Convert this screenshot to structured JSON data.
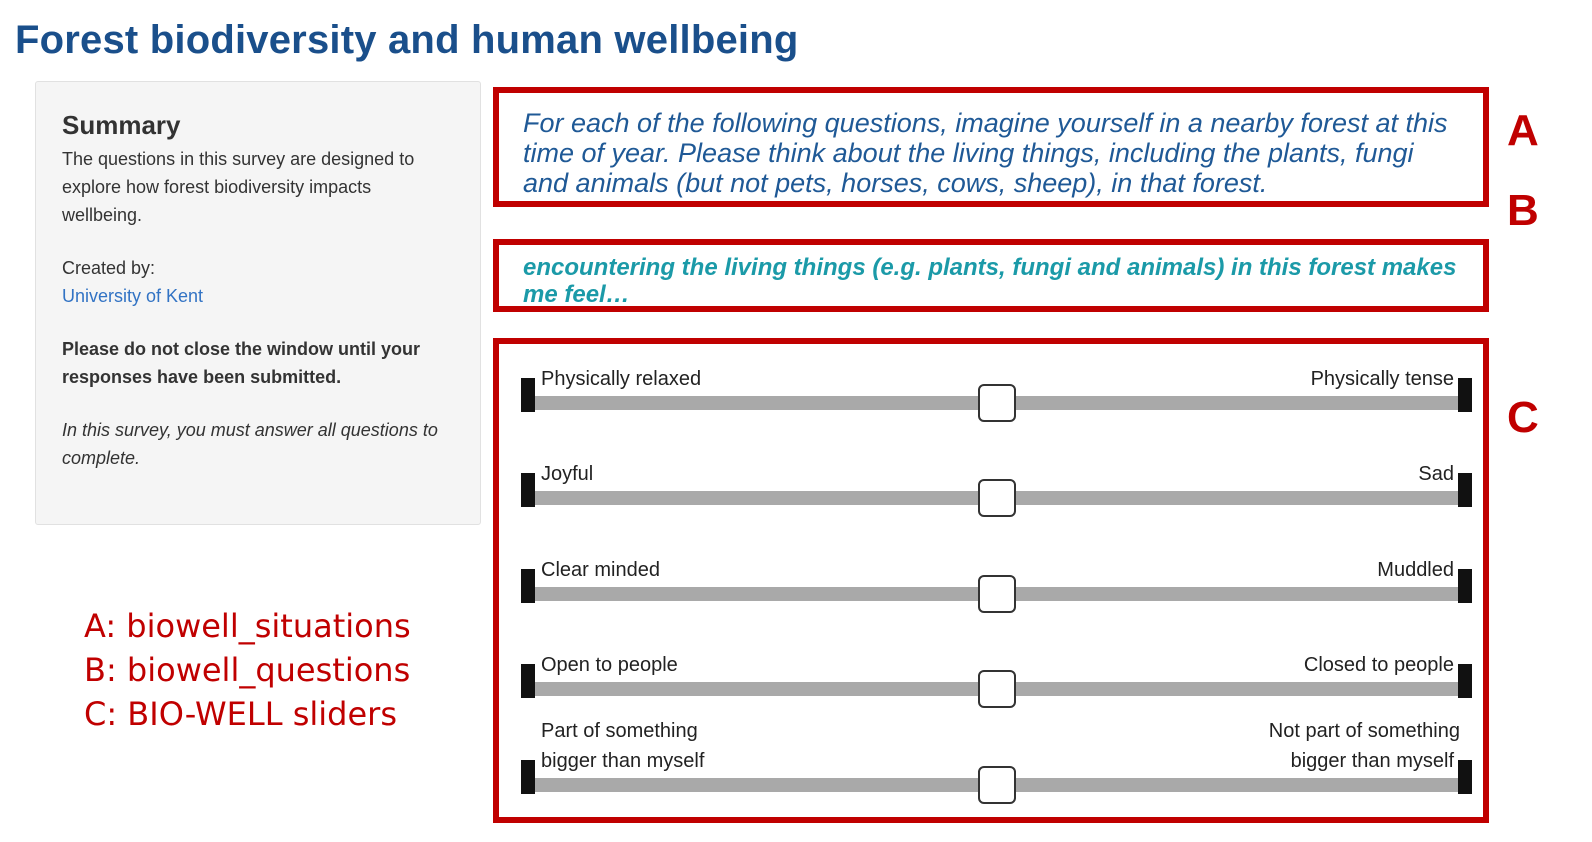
{
  "page": {
    "title": "Forest biodiversity and human wellbeing"
  },
  "summary": {
    "heading": "Summary",
    "description": "The questions in this survey are designed to explore how forest biodiversity impacts wellbeing.",
    "created_by_label": "Created by:",
    "creator": "University of Kent",
    "warning": "Please do not close the window until your responses have been submitted.",
    "note": "In this survey, you must answer all questions to complete."
  },
  "situation": {
    "text": "For each of the following questions, imagine yourself in a nearby forest at this time of year. Please think about the living things, including the plants, fungi and animals (but not pets, horses, cows, sheep), in that forest."
  },
  "question": {
    "text": "encountering the living things (e.g. plants, fungi and animals) in this forest makes me feel…"
  },
  "annotations": {
    "letters": [
      "A",
      "B",
      "C"
    ],
    "legend": [
      "A: biowell_situations",
      "B: biowell_questions",
      "C: BIO-WELL sliders"
    ]
  },
  "sliders": [
    {
      "left_label": "Physically relaxed",
      "right_label": "Physically tense",
      "value": 0.5
    },
    {
      "left_label": "Joyful",
      "right_label": "Sad",
      "value": 0.5
    },
    {
      "left_label": "Clear minded",
      "right_label": "Muddled",
      "value": 0.5
    },
    {
      "left_label": "Open to people",
      "right_label": "Closed to people",
      "value": 0.5
    },
    {
      "left_label_1": "Part of something",
      "left_label_2": "bigger than myself",
      "right_label_1": "Not part of something",
      "right_label_2": "bigger than myself",
      "value": 0.5
    }
  ],
  "colors": {
    "title": "#1a4f8b",
    "annotation_red": "#c00000",
    "situation_text": "#1f5996",
    "question_text": "#1b9aa8",
    "slider_track": "#a9a9a9"
  }
}
